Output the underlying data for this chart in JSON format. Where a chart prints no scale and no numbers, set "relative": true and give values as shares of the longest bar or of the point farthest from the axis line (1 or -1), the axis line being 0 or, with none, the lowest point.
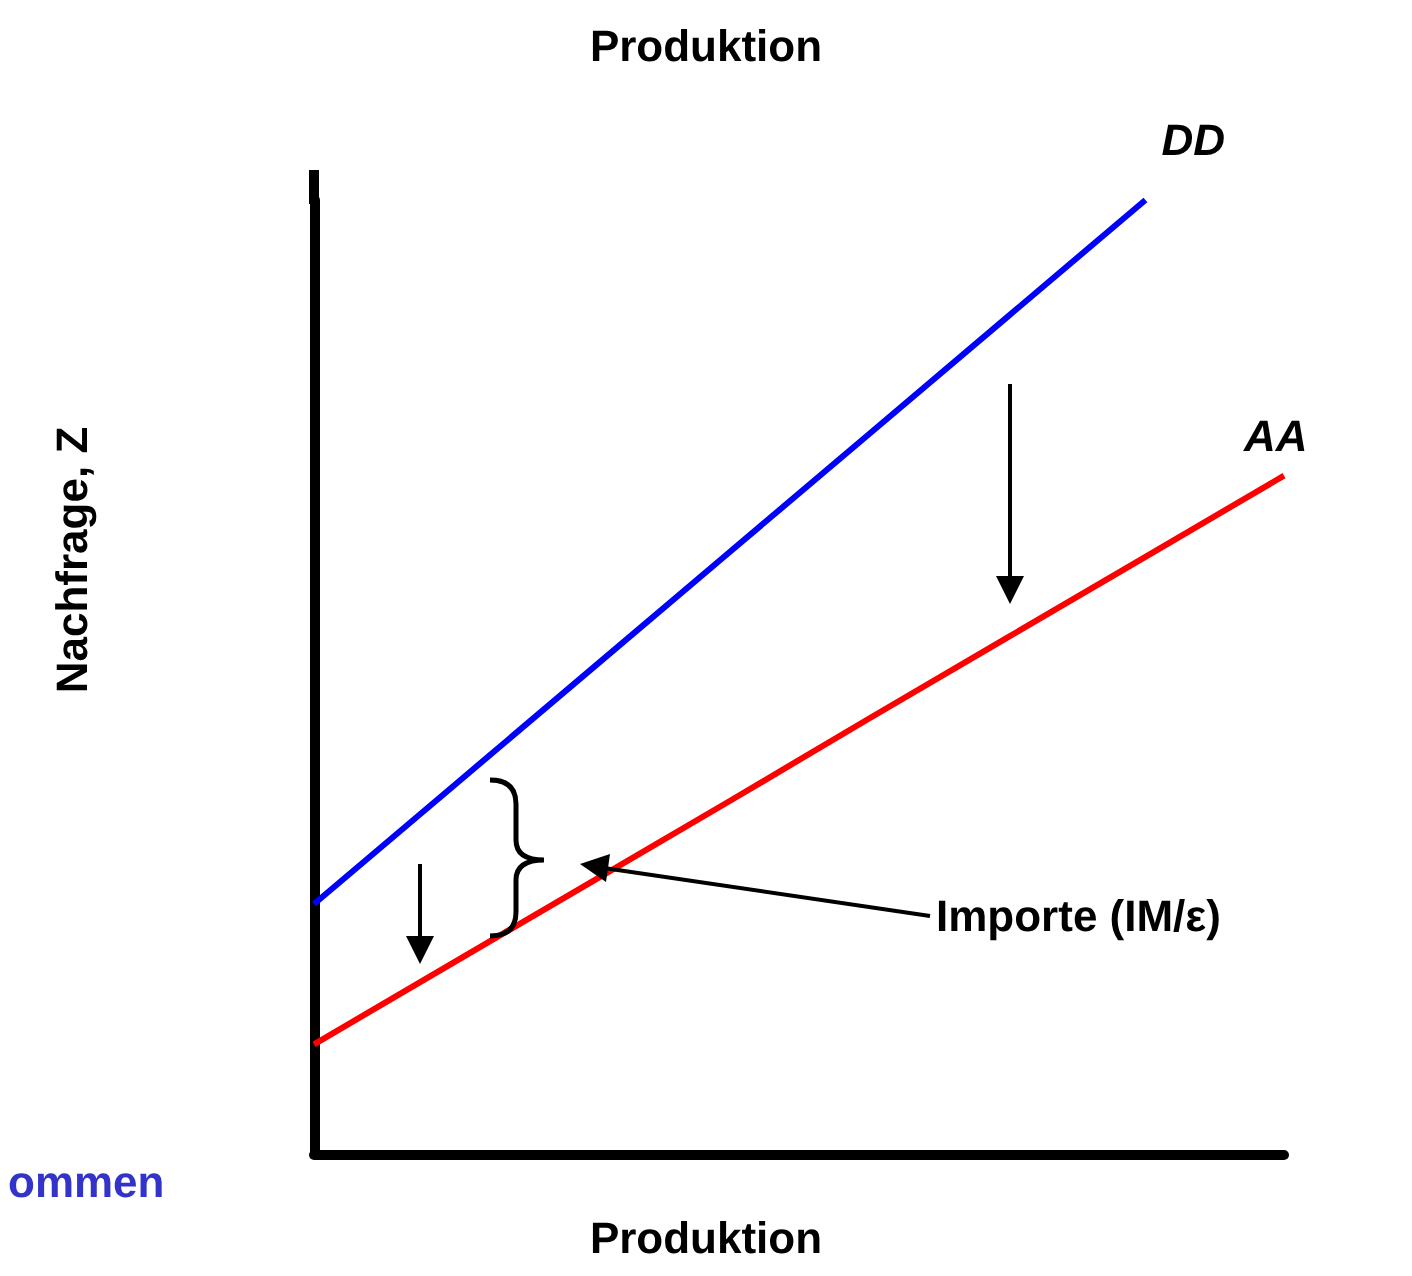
{
  "chart_data": {
    "type": "line",
    "title": "Produktion",
    "xlabel": "Produktion",
    "ylabel": "Nachfrage, Z",
    "relative": true,
    "categories": [
      null,
      null,
      null,
      null,
      null,
      null,
      null,
      null
    ],
    "series": [
      {
        "name": "DD",
        "color": "#0000ff",
        "values": [
          0.262,
          0.385,
          0.508,
          0.631,
          0.754,
          0.877,
          1,
          null
        ]
      },
      {
        "name": "AA",
        "color": "#ff0000",
        "values": [
          0.115,
          0.2,
          0.285,
          0.37,
          0.456,
          0.541,
          0.626,
          0.711
        ]
      }
    ],
    "annotations": [
      "Importe (IM/ε)",
      "ommen"
    ],
    "marker": "none",
    "line_style": "solid",
    "legend": false,
    "grid": false
  }
}
